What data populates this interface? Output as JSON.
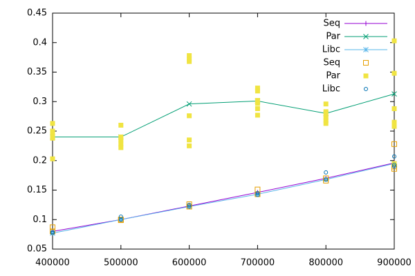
{
  "chart_data": {
    "type": "line",
    "xlim": [
      400000,
      900000
    ],
    "xticks": [
      400000,
      500000,
      600000,
      700000,
      800000,
      900000
    ],
    "ylim": [
      0.05,
      0.45
    ],
    "yticks": [
      0.05,
      0.1,
      0.15,
      0.2,
      0.25,
      0.3,
      0.35,
      0.4,
      0.45
    ],
    "grid": false,
    "legend": "top-right",
    "series": [
      {
        "name": "Seq",
        "color": "#9400d3",
        "style": "line",
        "marker": "plus",
        "x": [
          400000,
          500000,
          600000,
          700000,
          800000,
          900000
        ],
        "values": [
          0.08,
          0.1,
          0.123,
          0.146,
          0.17,
          0.196
        ]
      },
      {
        "name": "Par",
        "color": "#009e73",
        "style": "line",
        "marker": "cross",
        "x": [
          400000,
          500000,
          600000,
          700000,
          800000,
          900000
        ],
        "values": [
          0.24,
          0.24,
          0.296,
          0.301,
          0.28,
          0.313
        ]
      },
      {
        "name": "Libc",
        "color": "#56b4e9",
        "style": "line",
        "marker": "star",
        "x": [
          400000,
          500000,
          600000,
          700000,
          800000,
          900000
        ],
        "values": [
          0.077,
          0.1,
          0.122,
          0.143,
          0.168,
          0.195
        ]
      },
      {
        "name": "Seq",
        "color": "#e69f00",
        "style": "points",
        "marker": "open-square",
        "x": [
          400000,
          400000,
          500000,
          500000,
          600000,
          600000,
          700000,
          700000,
          800000,
          800000,
          900000,
          900000,
          900000
        ],
        "values": [
          0.087,
          0.08,
          0.1,
          0.099,
          0.126,
          0.122,
          0.151,
          0.143,
          0.166,
          0.17,
          0.228,
          0.19,
          0.186
        ]
      },
      {
        "name": "Par",
        "color": "#f0e442",
        "style": "points",
        "marker": "filled-square",
        "x": [
          400000,
          400000,
          400000,
          400000,
          400000,
          500000,
          500000,
          500000,
          500000,
          500000,
          600000,
          600000,
          600000,
          600000,
          600000,
          600000,
          700000,
          700000,
          700000,
          700000,
          700000,
          700000,
          800000,
          800000,
          800000,
          800000,
          800000,
          800000,
          900000,
          900000,
          900000,
          900000,
          900000,
          900000
        ],
        "values": [
          0.263,
          0.25,
          0.245,
          0.238,
          0.203,
          0.26,
          0.24,
          0.235,
          0.228,
          0.222,
          0.378,
          0.372,
          0.368,
          0.276,
          0.235,
          0.225,
          0.323,
          0.318,
          0.302,
          0.297,
          0.288,
          0.277,
          0.296,
          0.283,
          0.278,
          0.273,
          0.268,
          0.263,
          0.403,
          0.348,
          0.288,
          0.265,
          0.258,
          0.195
        ]
      },
      {
        "name": "Libc",
        "color": "#0072b2",
        "style": "points",
        "marker": "open-circle",
        "x": [
          400000,
          400000,
          500000,
          500000,
          600000,
          600000,
          700000,
          700000,
          800000,
          800000,
          900000,
          900000,
          900000
        ],
        "values": [
          0.077,
          0.079,
          0.105,
          0.1,
          0.122,
          0.125,
          0.145,
          0.142,
          0.18,
          0.168,
          0.207,
          0.193,
          0.19
        ]
      }
    ]
  }
}
